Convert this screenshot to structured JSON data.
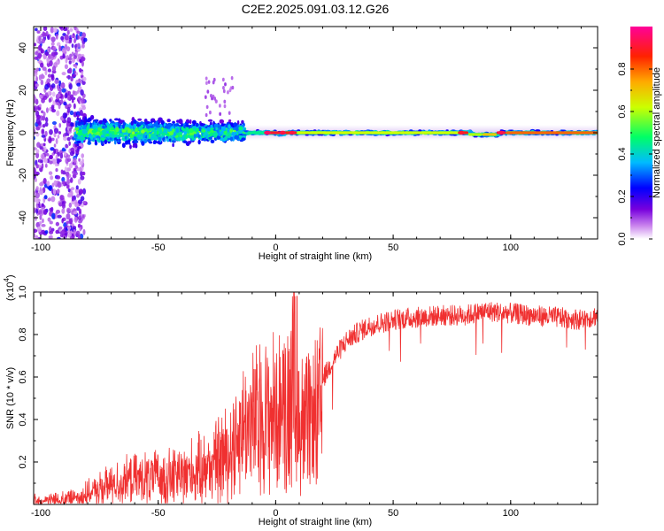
{
  "title": "C2E2.2025.091.03.12.G26",
  "chart_data": [
    {
      "type": "heatmap",
      "xlabel": "Height of straight line (km)",
      "ylabel": "Frequency (Hz)",
      "xlim": [
        -103,
        137
      ],
      "ylim": [
        -50,
        50
      ],
      "x_ticks": [
        -100,
        -50,
        0,
        50,
        100
      ],
      "x_tick_labels": [
        "-100",
        "-50",
        "0",
        "50",
        "100"
      ],
      "y_ticks": [
        -40,
        -20,
        0,
        20,
        40
      ],
      "y_tick_labels": [
        "-40",
        "-20",
        "0",
        "20",
        "40"
      ],
      "colorbar": {
        "label": "Normalized spectral amplitude",
        "range": [
          0,
          1
        ],
        "ticks": [
          0.0,
          0.2,
          0.4,
          0.6,
          0.8
        ],
        "tick_labels": [
          "0.0",
          "0.2",
          "0.4",
          "0.6",
          "0.8"
        ],
        "colormap": "rainbow (white-magenta-blue-cyan-green-yellow-orange-red-pink)"
      },
      "features": [
        {
          "x_range": [
            -103,
            -85
          ],
          "description": "broadband scattered noise"
        },
        {
          "x_range": [
            -85,
            -15
          ],
          "frequency_center": 0,
          "frequency_spread": 6
        },
        {
          "x_range": [
            -15,
            137
          ],
          "frequency_center": 0,
          "frequency_spread": 2
        }
      ]
    },
    {
      "type": "line",
      "xlabel": "Height of straight line (km)",
      "ylabel": "SNR (10 * v/v)",
      "y_multiplier": "(x10^4)",
      "y_multiplier_base": "(x10",
      "y_multiplier_exp": "4",
      "xlim": [
        -103,
        137
      ],
      "ylim": [
        0,
        1.0
      ],
      "x_ticks": [
        -100,
        -50,
        0,
        50,
        100
      ],
      "x_tick_labels": [
        "-100",
        "-50",
        "0",
        "50",
        "100"
      ],
      "y_ticks": [
        0.2,
        0.4,
        0.6,
        0.8,
        1.0
      ],
      "y_tick_labels": [
        "0.2",
        "0.4",
        "0.6",
        "0.8",
        "1.0"
      ],
      "series": [
        {
          "color": "#f03030",
          "x": [
            -100,
            -90,
            -80,
            -70,
            -60,
            -50,
            -40,
            -30,
            -20,
            -15,
            -10,
            -5,
            0,
            5,
            8,
            10,
            15,
            20,
            25,
            30,
            35,
            40,
            50,
            60,
            70,
            80,
            90,
            100,
            110,
            120,
            130,
            137
          ],
          "y": [
            0.02,
            0.03,
            0.06,
            0.12,
            0.15,
            0.16,
            0.18,
            0.22,
            0.32,
            0.45,
            0.5,
            0.55,
            0.55,
            0.6,
            0.75,
            0.5,
            0.48,
            0.6,
            0.7,
            0.78,
            0.82,
            0.85,
            0.88,
            0.89,
            0.9,
            0.9,
            0.92,
            0.91,
            0.9,
            0.89,
            0.88,
            0.9
          ]
        }
      ]
    }
  ]
}
